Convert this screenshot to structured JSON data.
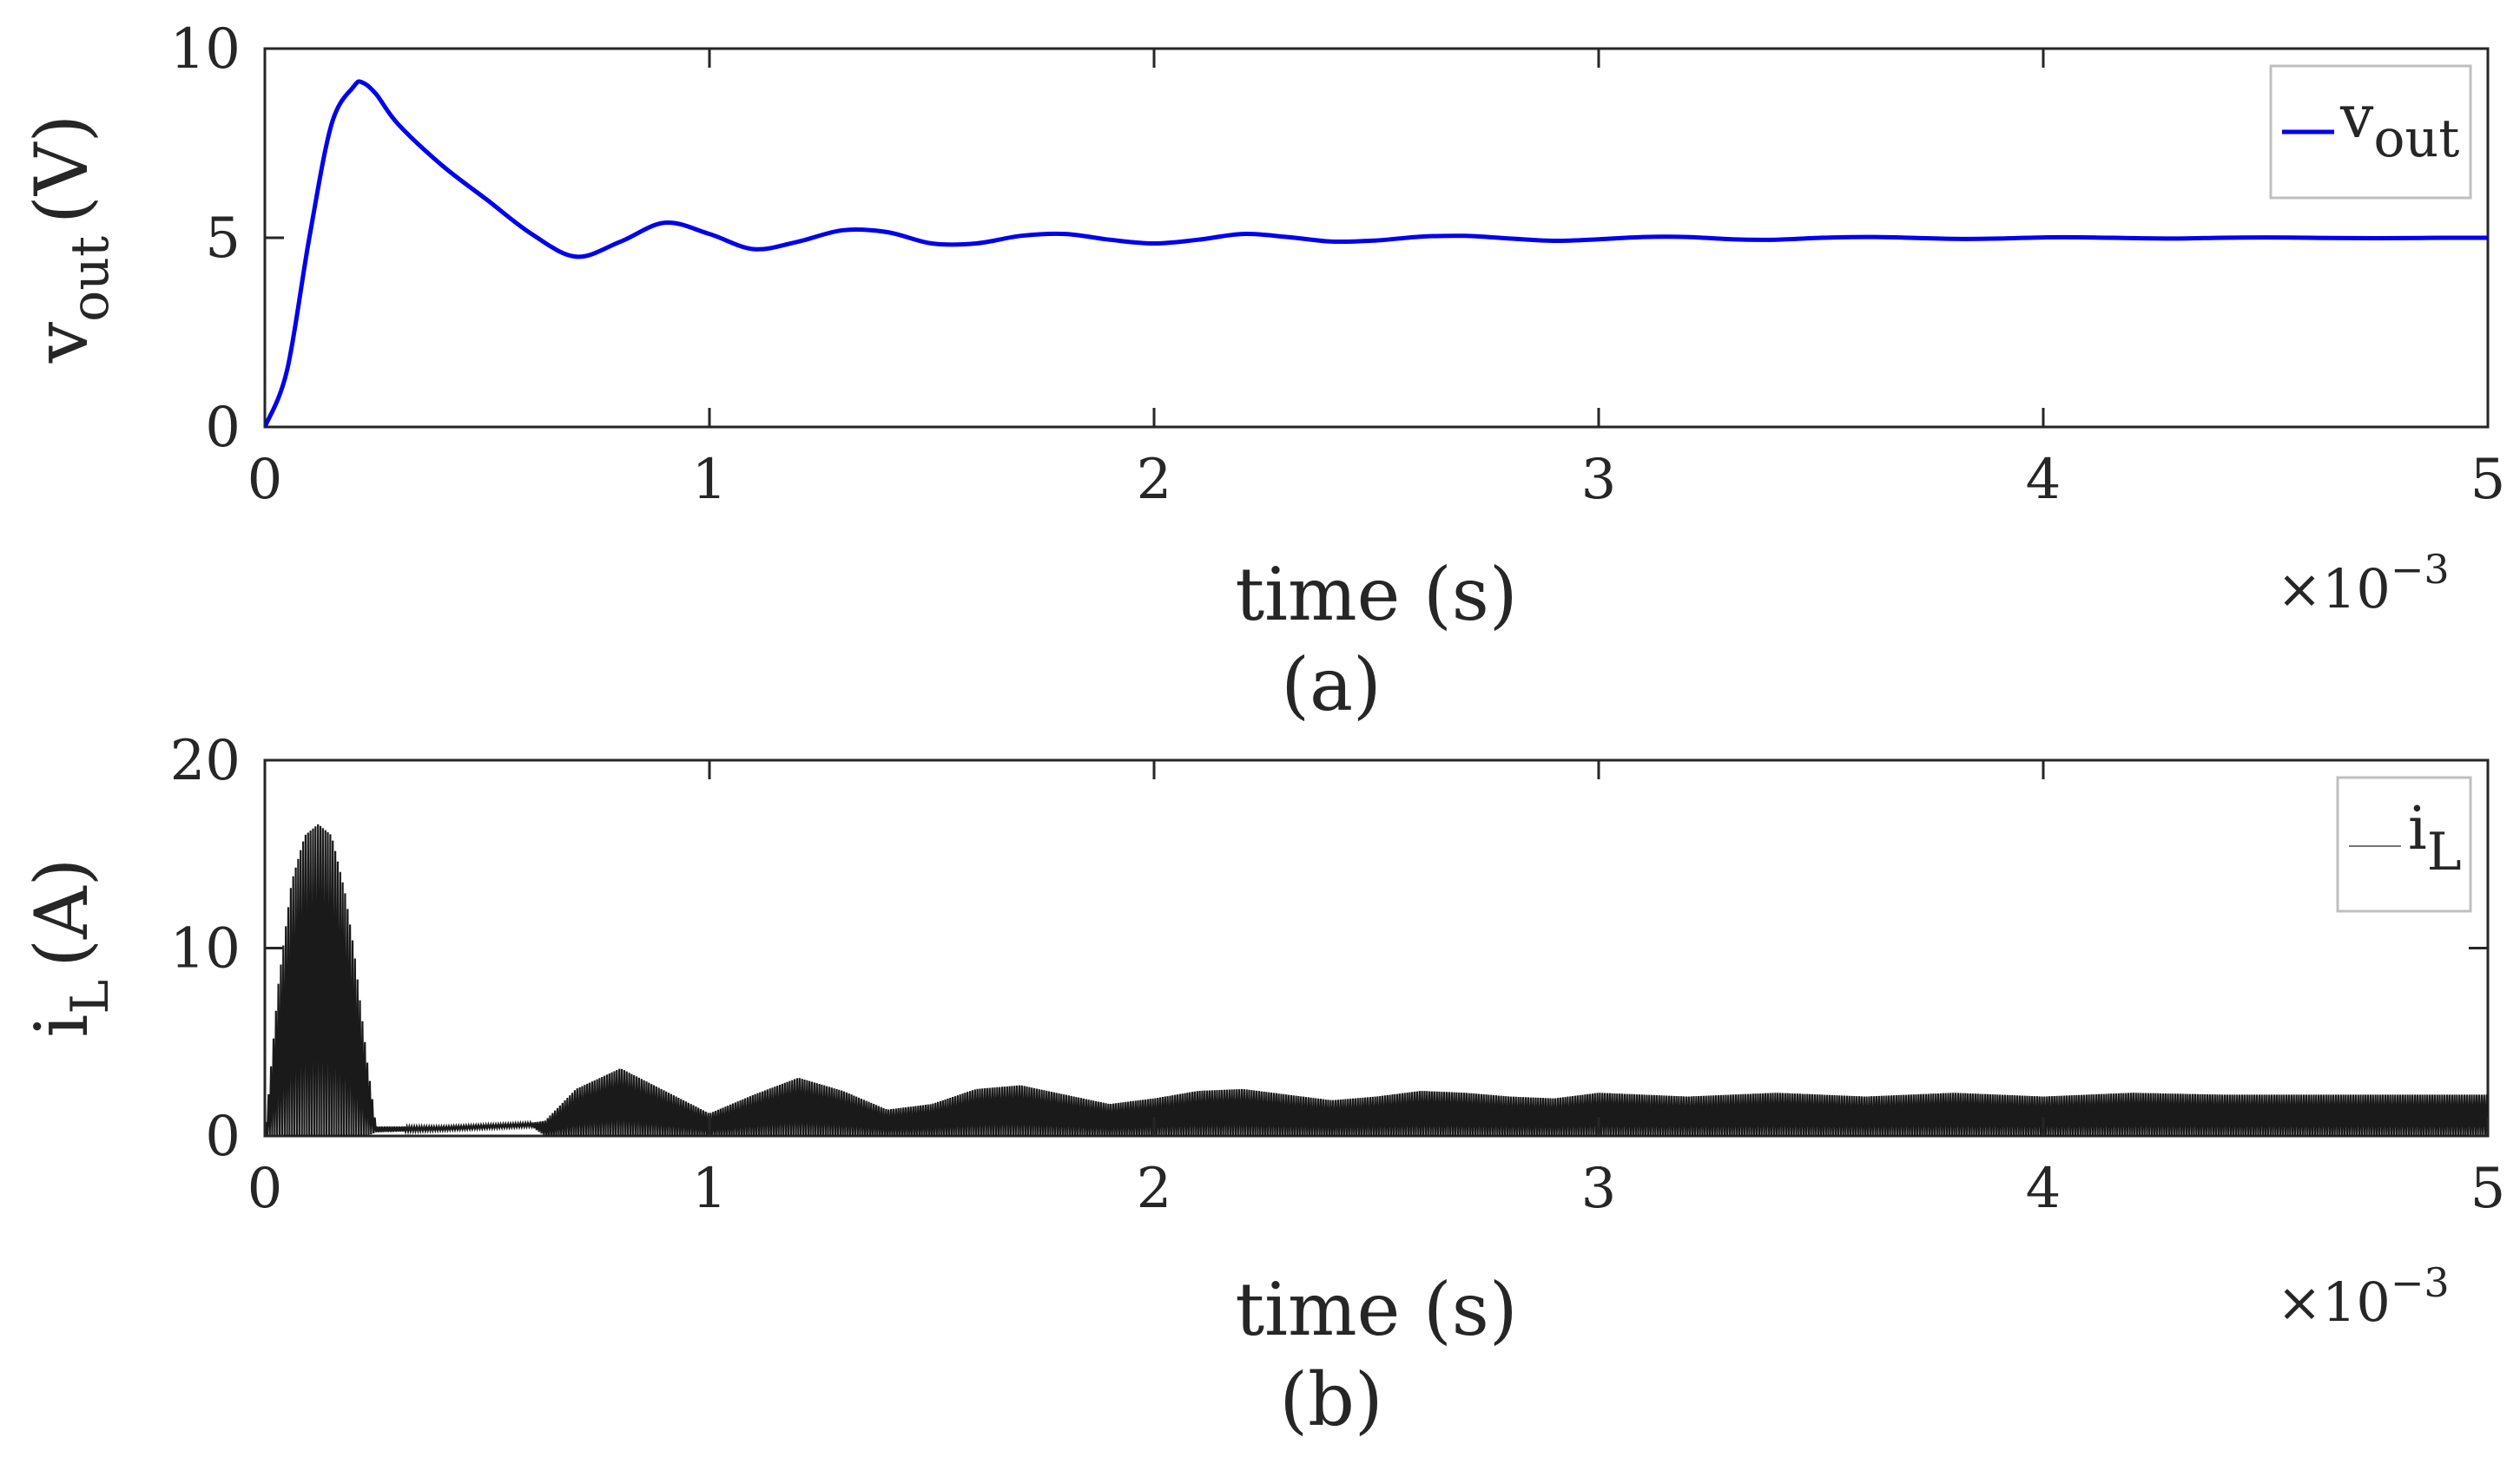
{
  "figure": {
    "panels": [
      {
        "id": "a",
        "caption": "(a)",
        "ylabel_main": "v",
        "ylabel_sub": "out",
        "ylabel_unit": "(V)",
        "xlabel": "time (s)",
        "x_multiplier_base": "×10",
        "x_multiplier_exp": "−3",
        "legend_main": "v",
        "legend_sub": "out",
        "x_ticks": [
          "0",
          "1",
          "2",
          "3",
          "4",
          "5"
        ],
        "y_ticks": [
          "0",
          "5",
          "10"
        ]
      },
      {
        "id": "b",
        "caption": "(b)",
        "ylabel_main": "i",
        "ylabel_sub": "L",
        "ylabel_unit": "(A)",
        "xlabel": "time (s)",
        "x_multiplier_base": "×10",
        "x_multiplier_exp": "−3",
        "legend_main": "i",
        "legend_sub": "L",
        "x_ticks": [
          "0",
          "1",
          "2",
          "3",
          "4",
          "5"
        ],
        "y_ticks": [
          "0",
          "10",
          "20"
        ]
      }
    ]
  },
  "colors": {
    "vout": "#0000ee",
    "iL": "#1a1a1a",
    "axes": "#262626",
    "grid_box": "#bfbfbf"
  },
  "chart_data": [
    {
      "type": "line",
      "panel": "a",
      "xlabel": "time (s)",
      "ylabel": "v_out (V)",
      "xlim": [
        0,
        0.005
      ],
      "ylim": [
        0,
        10
      ],
      "x_scale_note": "×10^-3",
      "grid": false,
      "legend_placement": "top-right",
      "series": [
        {
          "name": "v_out",
          "x": [
            0,
            5e-05,
            0.0001,
            0.00015,
            0.0002,
            0.00022,
            0.00025,
            0.0003,
            0.0004,
            0.0005,
            0.0006,
            0.0007,
            0.0008,
            0.0009,
            0.001,
            0.0011,
            0.0012,
            0.0013,
            0.0014,
            0.0015,
            0.0016,
            0.0017,
            0.0018,
            0.0019,
            0.002,
            0.0021,
            0.0022,
            0.0023,
            0.0024,
            0.0025,
            0.0026,
            0.0027,
            0.0028,
            0.0029,
            0.003,
            0.0031,
            0.0032,
            0.0033,
            0.0034,
            0.0035,
            0.0036,
            0.0037,
            0.0038,
            0.0039,
            0.004,
            0.0041,
            0.0042,
            0.0043,
            0.0044,
            0.0045,
            0.0046,
            0.0047,
            0.0048,
            0.0049,
            0.005
          ],
          "values": [
            0,
            1.5,
            5.0,
            8.0,
            9.0,
            9.1,
            8.8,
            8.0,
            6.9,
            6.0,
            5.1,
            4.5,
            4.9,
            5.4,
            5.1,
            4.7,
            4.9,
            5.2,
            5.15,
            4.85,
            4.85,
            5.05,
            5.1,
            4.95,
            4.85,
            4.95,
            5.1,
            5.02,
            4.9,
            4.93,
            5.03,
            5.05,
            4.98,
            4.92,
            4.96,
            5.02,
            5.02,
            4.96,
            4.95,
            5.0,
            5.02,
            5.0,
            4.97,
            4.98,
            5.01,
            5.01,
            4.99,
            4.98,
            5.0,
            5.01,
            5.0,
            4.99,
            4.99,
            5.0,
            5.0
          ]
        }
      ]
    },
    {
      "type": "line",
      "panel": "b",
      "xlabel": "time (s)",
      "ylabel": "i_L (A)",
      "xlim": [
        0,
        0.005
      ],
      "ylim": [
        0,
        20
      ],
      "x_scale_note": "×10^-3",
      "grid": false,
      "legend_placement": "top-right",
      "series": [
        {
          "name": "i_L",
          "note": "high-frequency switching ripple between ~0 and the upper envelope",
          "x": [
            0,
            3e-05,
            6e-05,
            9e-05,
            0.00012,
            0.00015,
            0.00018,
            0.0002,
            0.00023,
            0.00025,
            0.0004,
            0.0006,
            0.00063,
            0.0007,
            0.0008,
            0.0009,
            0.001,
            0.0011,
            0.0012,
            0.0013,
            0.0014,
            0.0015,
            0.0016,
            0.0017,
            0.0018,
            0.0019,
            0.002,
            0.0021,
            0.0022,
            0.0023,
            0.0024,
            0.0025,
            0.0026,
            0.0027,
            0.0028,
            0.0029,
            0.003,
            0.0032,
            0.0034,
            0.0036,
            0.0038,
            0.004,
            0.0042,
            0.0044,
            0.0046,
            0.0048,
            0.005
          ],
          "upper_envelope": [
            0,
            8.0,
            13.5,
            16.0,
            16.6,
            16.0,
            13.0,
            10.0,
            4.0,
            0.5,
            0.5,
            0.7,
            0.8,
            2.5,
            3.6,
            2.4,
            1.2,
            2.2,
            3.1,
            2.4,
            1.4,
            1.7,
            2.5,
            2.7,
            2.2,
            1.7,
            2.0,
            2.4,
            2.5,
            2.2,
            1.9,
            2.1,
            2.4,
            2.3,
            2.1,
            2.0,
            2.3,
            2.1,
            2.3,
            2.1,
            2.3,
            2.1,
            2.3,
            2.2,
            2.2,
            2.2,
            2.2
          ],
          "lower_envelope": [
            0,
            0,
            0,
            0,
            0,
            0,
            0,
            0,
            0,
            0.2,
            0.3,
            0.5,
            0,
            0,
            0,
            0,
            0,
            0,
            0,
            0,
            0,
            0,
            0,
            0,
            0,
            0,
            0,
            0,
            0,
            0,
            0,
            0,
            0,
            0,
            0,
            0,
            0,
            0,
            0,
            0,
            0,
            0,
            0,
            0,
            0,
            0,
            0
          ]
        }
      ]
    }
  ]
}
